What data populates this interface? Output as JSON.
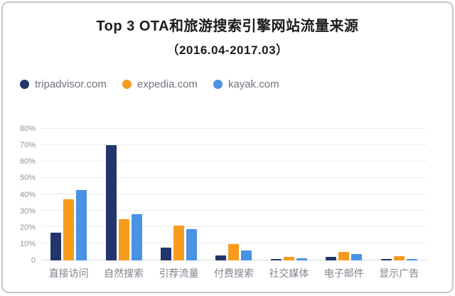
{
  "chart_data": {
    "type": "bar",
    "title": "Top 3 OTA和旅游搜索引擎网站流量来源",
    "subtitle": "（2016.04-2017.03）",
    "categories": [
      "直接访问",
      "自然搜索",
      "引荐流量",
      "付费搜索",
      "社交媒体",
      "电子邮件",
      "显示广告"
    ],
    "series": [
      {
        "name": "tripadvisor.com",
        "short": "tripadvisor",
        "color": "#24356B",
        "values": [
          17,
          70,
          8,
          3,
          1,
          2,
          1
        ]
      },
      {
        "name": "expedia.com",
        "short": "expedia",
        "color": "#F59C1E",
        "values": [
          37,
          25,
          21,
          10,
          2,
          5,
          2.5
        ]
      },
      {
        "name": "kayak.com",
        "short": "kayak",
        "color": "#4A92E4",
        "values": [
          43,
          28,
          19,
          6,
          1.5,
          4,
          1
        ]
      }
    ],
    "ylim": [
      0,
      80
    ],
    "yticks": [
      {
        "label": "0",
        "value": 0
      },
      {
        "label": "10%",
        "value": 10
      },
      {
        "label": "20%",
        "value": 20
      },
      {
        "label": "30%",
        "value": 30
      },
      {
        "label": "40%",
        "value": 40
      },
      {
        "label": "50%",
        "value": 50
      },
      {
        "label": "60%",
        "value": 60
      },
      {
        "label": "70%",
        "value": 70
      },
      {
        "label": "80%",
        "value": 80
      }
    ],
    "grid": "horizontal",
    "legend_position": "top-left",
    "colors": {
      "title_text": "#1b1b1b",
      "axis_label_text": "#7e848d",
      "tick_label_text": "#8d939c",
      "legend_text": "#6e737c",
      "gridline": "#ececef",
      "axis_line": "#d7dade",
      "card_border": "#c7c7c7",
      "background": "#ffffff"
    }
  }
}
